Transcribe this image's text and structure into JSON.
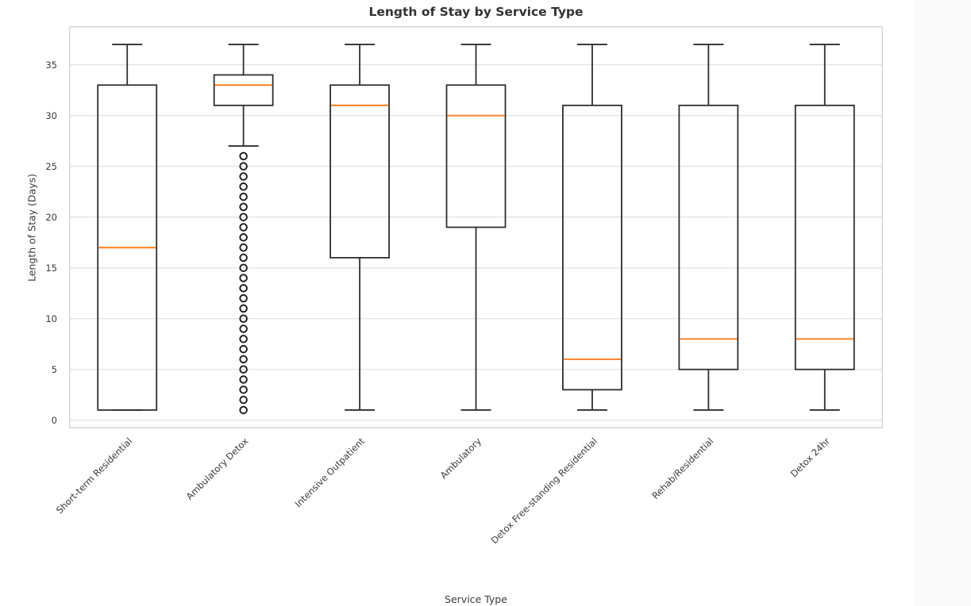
{
  "chart_data": {
    "type": "box",
    "title": "Length of Stay by Service Type",
    "xlabel": "Service Type",
    "ylabel": "Length of Stay (Days)",
    "ylim": [
      -0.8,
      38.8
    ],
    "yticks": [
      0,
      5,
      10,
      15,
      20,
      25,
      30,
      35
    ],
    "grid": "horizontal",
    "legend": "none",
    "categories": [
      "Short-term Residential",
      "Ambulatory Detox",
      "Intensive Outpatient",
      "Ambulatory",
      "Detox Free-standing Residential",
      "Rehab/Residential",
      "Detox 24hr"
    ],
    "series": [
      {
        "category": "Short-term Residential",
        "whisker_low": 1,
        "q1": 1,
        "median": 17,
        "q3": 33,
        "whisker_high": 37,
        "outliers": []
      },
      {
        "category": "Ambulatory Detox",
        "whisker_low": 27,
        "q1": 31,
        "median": 33,
        "q3": 34,
        "whisker_high": 37,
        "outliers": [
          1,
          2,
          3,
          4,
          5,
          6,
          7,
          8,
          9,
          10,
          11,
          12,
          13,
          14,
          15,
          16,
          17,
          18,
          19,
          20,
          21,
          22,
          23,
          24,
          25,
          26
        ]
      },
      {
        "category": "Intensive Outpatient",
        "whisker_low": 1,
        "q1": 16,
        "median": 31,
        "q3": 33,
        "whisker_high": 37,
        "outliers": []
      },
      {
        "category": "Ambulatory",
        "whisker_low": 1,
        "q1": 19,
        "median": 30,
        "q3": 33,
        "whisker_high": 37,
        "outliers": []
      },
      {
        "category": "Detox Free-standing Residential",
        "whisker_low": 1,
        "q1": 3,
        "median": 6,
        "q3": 31,
        "whisker_high": 37,
        "outliers": []
      },
      {
        "category": "Rehab/Residential",
        "whisker_low": 1,
        "q1": 5,
        "median": 8,
        "q3": 31,
        "whisker_high": 37,
        "outliers": []
      },
      {
        "category": "Detox 24hr",
        "whisker_low": 1,
        "q1": 5,
        "median": 8,
        "q3": 31,
        "whisker_high": 37,
        "outliers": []
      }
    ],
    "colors": {
      "box_line": "#2f2f2f",
      "median_line": "#fb8b37",
      "outlier_stroke": "#1a1a1a",
      "gridline": "#e2e2e2",
      "spine": "#d4d4d8",
      "tick_text": "#3a3a3a",
      "title_text": "#333333",
      "plot_bg": "#ffffff",
      "figure_bg": "#ffffff",
      "page_strip": "#fafafa"
    }
  }
}
